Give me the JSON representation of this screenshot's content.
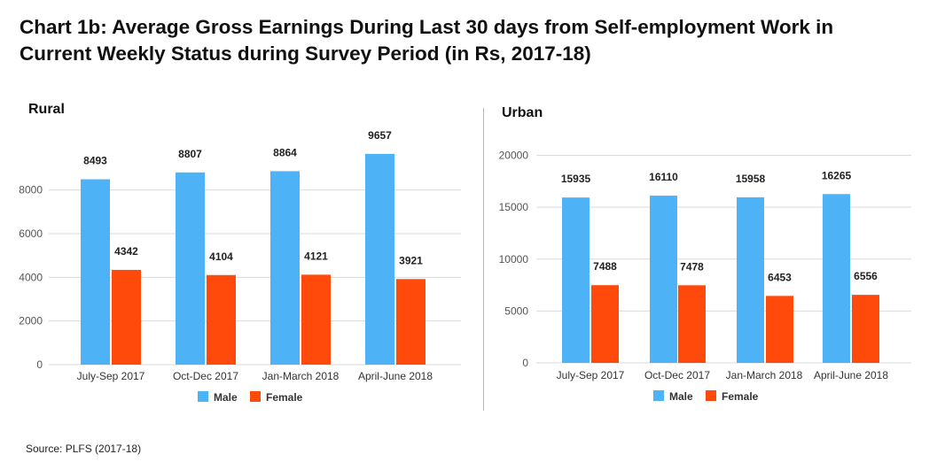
{
  "title_lines": [
    "Chart 1b: Average Gross Earnings During Last 30 days from Self-employment Work in",
    "Current Weekly Status during Survey Period (in Rs, 2017-18)"
  ],
  "source": "Source: PLFS (2017-18)",
  "colors": {
    "Male": "#4db3f6",
    "Female": "#ff4a0c",
    "grid": "#d9d9d9",
    "axis_text": "#555555"
  },
  "chart_data": [
    {
      "type": "bar",
      "title": "Rural",
      "categories": [
        "July-Sep 2017",
        "Oct-Dec 2017",
        "Jan-March 2018",
        "April-June 2018"
      ],
      "series": [
        {
          "name": "Male",
          "values": [
            8493,
            8807,
            8864,
            9657
          ]
        },
        {
          "name": "Female",
          "values": [
            4342,
            4104,
            4121,
            3921
          ]
        }
      ],
      "yticks": [
        0,
        2000,
        4000,
        6000,
        8000
      ],
      "ylim": [
        0,
        10000
      ],
      "grid": true,
      "legend": "bottom"
    },
    {
      "type": "bar",
      "title": "Urban",
      "categories": [
        "July-Sep 2017",
        "Oct-Dec 2017",
        "Jan-March 2018",
        "April-June 2018"
      ],
      "series": [
        {
          "name": "Male",
          "values": [
            15935,
            16110,
            15958,
            16265
          ]
        },
        {
          "name": "Female",
          "values": [
            7488,
            7478,
            6453,
            6556
          ]
        }
      ],
      "yticks": [
        0,
        5000,
        10000,
        15000,
        20000
      ],
      "ylim": [
        0,
        20000
      ],
      "grid": true,
      "legend": "bottom"
    }
  ]
}
